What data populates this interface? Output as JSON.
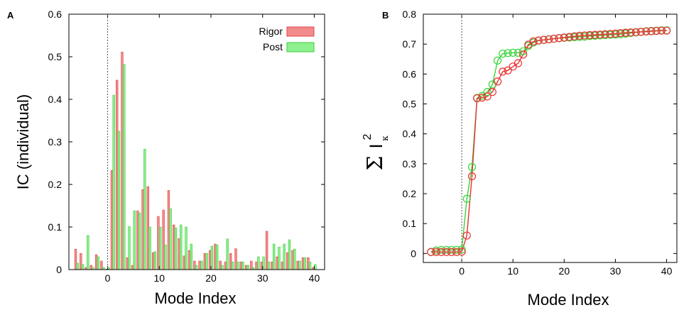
{
  "chart_data": [
    {
      "panel": "A",
      "type": "bar",
      "xlabel": "Mode Index",
      "ylabel": "IC (individual)",
      "xlim": [
        -7.5,
        42
      ],
      "ylim": [
        0,
        0.6
      ],
      "xticks": [
        0,
        10,
        20,
        30,
        40
      ],
      "yticks": [
        0,
        0.1,
        0.2,
        0.3,
        0.4,
        0.5,
        0.6
      ],
      "vline_x": 0,
      "legend": "top-right",
      "colors": {
        "Rigor": "#f28b8b",
        "Post": "#8ff08f",
        "Rigor_edge": "#e04848",
        "Post_edge": "#3ccc3c"
      },
      "x": [
        -6,
        -5,
        -4,
        -3,
        -2,
        -1,
        0,
        1,
        2,
        3,
        4,
        5,
        6,
        7,
        8,
        9,
        10,
        11,
        12,
        13,
        14,
        15,
        16,
        17,
        18,
        19,
        20,
        21,
        22,
        23,
        24,
        25,
        26,
        27,
        28,
        29,
        30,
        31,
        32,
        33,
        34,
        35,
        36,
        37,
        38,
        39,
        40
      ],
      "series": [
        {
          "name": "Rigor",
          "values": [
            0.048,
            0.038,
            0.005,
            0.01,
            0.035,
            0.02,
            0.001,
            0.233,
            0.445,
            0.511,
            0.028,
            0.01,
            0.138,
            0.188,
            0.195,
            0.04,
            0.125,
            0.14,
            0.186,
            0.105,
            0.073,
            0.032,
            0.045,
            0.02,
            0.02,
            0.038,
            0.045,
            0.06,
            0.02,
            0.018,
            0.038,
            0.049,
            0.018,
            0.01,
            0.02,
            0.018,
            0.018,
            0.09,
            0.018,
            0.03,
            0.018,
            0.04,
            0.045,
            0.02,
            0.028,
            0.028,
            0.005
          ]
        },
        {
          "name": "Post",
          "values": [
            0.015,
            0.012,
            0.08,
            0.005,
            0.03,
            0.005,
            0.005,
            0.41,
            0.325,
            0.482,
            0.101,
            0.138,
            0.133,
            0.283,
            0.1,
            0.042,
            0.1,
            0.058,
            0.143,
            0.098,
            0.105,
            0.1,
            0.06,
            0.01,
            0.02,
            0.038,
            0.055,
            0.058,
            0.01,
            0.072,
            0.018,
            0.018,
            0.018,
            0.01,
            0.005,
            0.03,
            0.03,
            0.018,
            0.06,
            0.053,
            0.06,
            0.07,
            0.048,
            0.02,
            0.028,
            0.018,
            0.012
          ]
        }
      ]
    },
    {
      "panel": "B",
      "type": "line",
      "xlabel": "Mode Index",
      "ylabel_symbol": "Σ",
      "ylabel_var": "I",
      "ylabel_sub": "κ",
      "ylabel_sup": "2",
      "xlim": [
        -7.5,
        42
      ],
      "ylim": [
        -0.03,
        0.8
      ],
      "xticks": [
        0,
        10,
        20,
        30,
        40
      ],
      "yticks": [
        0,
        0.1,
        0.2,
        0.3,
        0.4,
        0.5,
        0.6,
        0.7,
        0.8
      ],
      "vline_x": 0,
      "colors": {
        "Rigor": "#e83030",
        "Post": "#3ad43a"
      },
      "x": [
        -6,
        -5,
        -4,
        -3,
        -2,
        -1,
        0,
        1,
        2,
        3,
        4,
        5,
        6,
        7,
        8,
        9,
        10,
        11,
        12,
        13,
        14,
        15,
        16,
        17,
        18,
        19,
        20,
        21,
        22,
        23,
        24,
        25,
        26,
        27,
        28,
        29,
        30,
        31,
        32,
        33,
        34,
        35,
        36,
        37,
        38,
        39,
        40
      ],
      "series": [
        {
          "name": "Rigor",
          "marker": "circle",
          "values": [
            0.005,
            0.005,
            0.005,
            0.005,
            0.005,
            0.005,
            0.006,
            0.06,
            0.258,
            0.519,
            0.521,
            0.525,
            0.54,
            0.575,
            0.608,
            0.612,
            0.625,
            0.636,
            0.665,
            0.698,
            0.709,
            0.712,
            0.714,
            0.716,
            0.718,
            0.72,
            0.722,
            0.724,
            0.726,
            0.728,
            0.729,
            0.73,
            0.731,
            0.732,
            0.733,
            0.734,
            0.735,
            0.737,
            0.738,
            0.739,
            0.74,
            0.741,
            0.742,
            0.743,
            0.744,
            0.745,
            0.745
          ]
        },
        {
          "name": "Post",
          "marker": "circle",
          "values": [
            0.005,
            0.01,
            0.012,
            0.012,
            0.012,
            0.012,
            0.013,
            0.183,
            0.289,
            0.52,
            0.527,
            0.54,
            0.565,
            0.645,
            0.668,
            0.67,
            0.671,
            0.671,
            0.676,
            0.694,
            0.705,
            0.712,
            0.714,
            0.716,
            0.718,
            0.72,
            0.721,
            0.722,
            0.723,
            0.724,
            0.725,
            0.727,
            0.728,
            0.729,
            0.73,
            0.731,
            0.732,
            0.733,
            0.735,
            0.737,
            0.739,
            0.741,
            0.743,
            0.744,
            0.745,
            0.746,
            0.746
          ]
        }
      ]
    }
  ]
}
